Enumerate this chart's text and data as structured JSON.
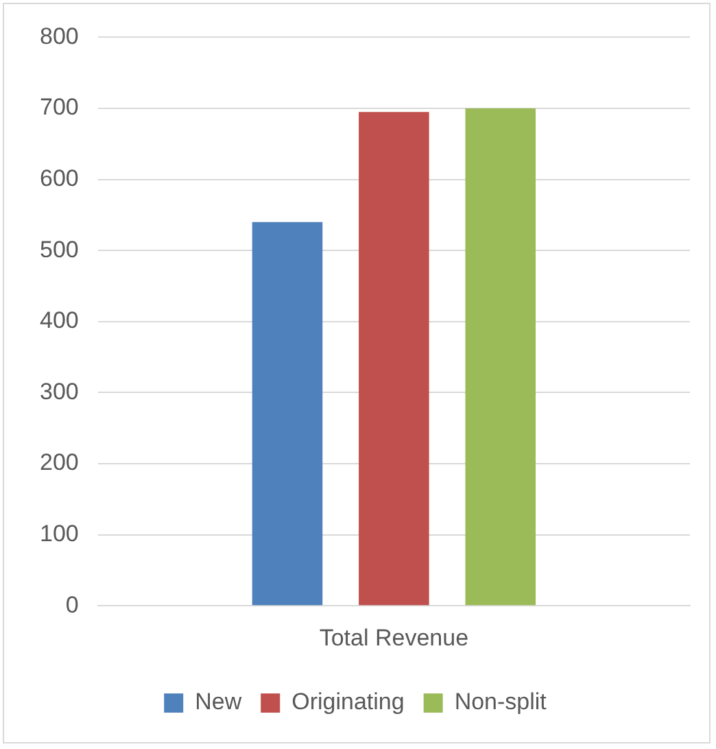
{
  "chart_data": {
    "type": "bar",
    "categories": [
      "Total Revenue"
    ],
    "series": [
      {
        "name": "New",
        "color": "#4f81bd",
        "values": [
          540
        ]
      },
      {
        "name": "Originating",
        "color": "#c0504d",
        "values": [
          695
        ]
      },
      {
        "name": "Non-split",
        "color": "#9bbb59",
        "values": [
          700
        ]
      }
    ],
    "ylim": [
      0,
      800
    ],
    "yticks": [
      0,
      100,
      200,
      300,
      400,
      500,
      600,
      700,
      800
    ],
    "grid": "y",
    "legend": "bottom"
  }
}
